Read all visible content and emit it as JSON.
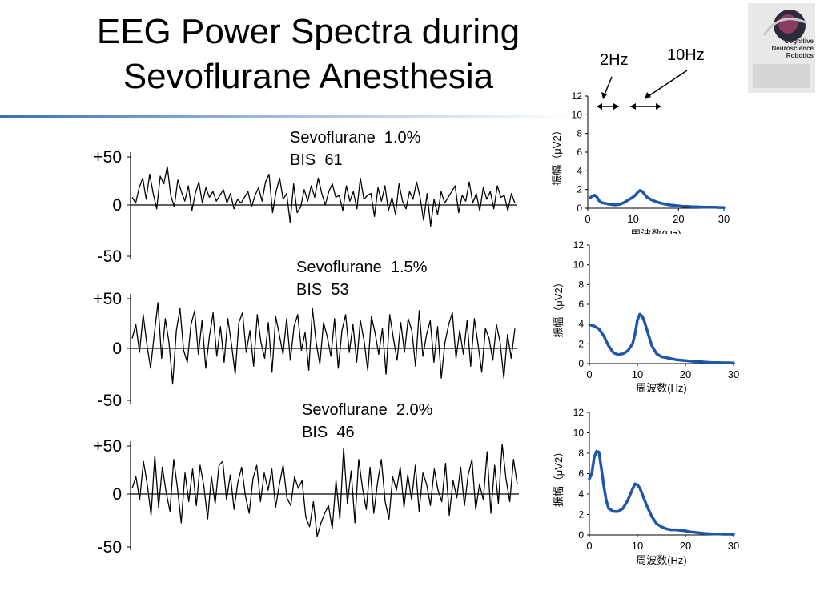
{
  "title": {
    "line1": "EEG Power Spectra during",
    "line2": "Sevoflurane Anesthesia"
  },
  "logo": {
    "text": [
      "Cognitive",
      "Neuroscience",
      "Robotics"
    ],
    "icon": "brain-logo-icon"
  },
  "annotations": {
    "band2": "2Hz",
    "band10": "10Hz"
  },
  "conditions": [
    {
      "drug": "Sevoflurane",
      "concentration": "1.0%",
      "bis_label": "BIS",
      "bis": "61"
    },
    {
      "drug": "Sevoflurane",
      "concentration": "1.5%",
      "bis_label": "BIS",
      "bis": "53"
    },
    {
      "drug": "Sevoflurane",
      "concentration": "2.0%",
      "bis_label": "BIS",
      "bis": "46"
    }
  ],
  "colors": {
    "spectrum_line": "#1f56a8",
    "eeg_trace": "#000000",
    "accent_rule": "#3d6fb5"
  },
  "chart_data": [
    {
      "type": "line",
      "subtype": "eeg-trace",
      "title": "Sevoflurane 1.0% BIS 61",
      "ylim": [
        -50,
        50
      ],
      "ytick_labels": [
        "+50",
        "0",
        "-50"
      ],
      "values": [
        8,
        2,
        18,
        28,
        6,
        32,
        12,
        -4,
        30,
        22,
        40,
        10,
        -2,
        26,
        14,
        4,
        20,
        -6,
        12,
        24,
        2,
        18,
        8,
        14,
        4,
        10,
        16,
        2,
        12,
        -4,
        6,
        2,
        8,
        14,
        -2,
        10,
        18,
        4,
        24,
        32,
        -8,
        14,
        28,
        6,
        12,
        -18,
        22,
        -8,
        -2,
        16,
        4,
        20,
        8,
        28,
        12,
        0,
        14,
        22,
        8,
        10,
        -6,
        20,
        4,
        14,
        -4,
        28,
        6,
        10,
        12,
        -12,
        18,
        4,
        20,
        -6,
        8,
        -10,
        22,
        4,
        -4,
        14,
        6,
        24,
        8,
        -16,
        12,
        -22,
        6,
        -10,
        14,
        2,
        8,
        14,
        20,
        -8,
        10,
        4,
        24,
        2,
        12,
        -6,
        18,
        6,
        14,
        -4,
        20,
        8,
        10,
        -6,
        12,
        2
      ]
    },
    {
      "type": "line",
      "subtype": "eeg-trace",
      "title": "Sevoflurane 1.5% BIS 53",
      "ylim": [
        -50,
        50
      ],
      "ytick_labels": [
        "+50",
        "0",
        "-50"
      ],
      "values": [
        10,
        24,
        -4,
        34,
        4,
        -20,
        14,
        46,
        -10,
        30,
        6,
        -36,
        18,
        40,
        -2,
        -14,
        24,
        38,
        -6,
        28,
        -20,
        12,
        36,
        -8,
        22,
        -14,
        30,
        4,
        -26,
        26,
        36,
        -4,
        18,
        -18,
        34,
        6,
        -10,
        26,
        -24,
        32,
        14,
        -6,
        30,
        -12,
        22,
        34,
        -2,
        16,
        -22,
        40,
        6,
        -16,
        26,
        12,
        -8,
        30,
        -20,
        18,
        34,
        -4,
        24,
        -14,
        28,
        8,
        -22,
        32,
        16,
        -6,
        20,
        -26,
        34,
        10,
        -12,
        26,
        -4,
        30,
        18,
        -18,
        38,
        -8,
        14,
        28,
        -14,
        22,
        -30,
        6,
        24,
        36,
        -10,
        18,
        -6,
        28,
        -18,
        30,
        4,
        -24,
        20,
        10,
        -12,
        24,
        6,
        -30,
        14,
        -10,
        20
      ]
    },
    {
      "type": "line",
      "subtype": "eeg-trace",
      "title": "Sevoflurane 2.0% BIS 46",
      "ylim": [
        -50,
        50
      ],
      "ytick_labels": [
        "+50",
        "0",
        "-50"
      ],
      "values": [
        6,
        18,
        -6,
        34,
        10,
        -22,
        40,
        -14,
        28,
        2,
        -18,
        36,
        6,
        -30,
        22,
        -8,
        26,
        -12,
        30,
        8,
        -26,
        18,
        -10,
        30,
        34,
        -6,
        20,
        -16,
        12,
        28,
        -2,
        -20,
        16,
        30,
        -8,
        22,
        4,
        26,
        -14,
        10,
        30,
        -4,
        -12,
        18,
        6,
        14,
        -24,
        -34,
        -8,
        -44,
        -30,
        -20,
        -12,
        -36,
        14,
        -26,
        48,
        -10,
        24,
        -30,
        36,
        6,
        -16,
        28,
        -20,
        12,
        36,
        -8,
        -26,
        18,
        4,
        28,
        -14,
        20,
        -6,
        30,
        -18,
        22,
        10,
        -12,
        26,
        4,
        -8,
        32,
        -22,
        14,
        -4,
        28,
        -12,
        20,
        36,
        -16,
        10,
        -6,
        44,
        -20,
        30,
        -10,
        52,
        16,
        -8,
        36,
        10
      ]
    },
    {
      "type": "line",
      "subtype": "power-spectrum",
      "title": "Sevoflurane 1.0%",
      "xlabel": "周波数(Hz)",
      "ylabel": "振幅（μV2）",
      "xlim": [
        0,
        30
      ],
      "ylim": [
        0,
        12
      ],
      "xticks": [
        0,
        10,
        20,
        30
      ],
      "yticks": [
        0,
        2,
        4,
        6,
        8,
        10,
        12
      ],
      "x": [
        0.5,
        1,
        1.5,
        2,
        2.5,
        3,
        4,
        5,
        6,
        7,
        8,
        9,
        10,
        10.5,
        11,
        11.5,
        12,
        12.5,
        13,
        14,
        15,
        16,
        17,
        18,
        19,
        20,
        21,
        22,
        23,
        24,
        25,
        26,
        27,
        28,
        29,
        30
      ],
      "values": [
        1.1,
        1.3,
        1.4,
        1.2,
        0.8,
        0.6,
        0.5,
        0.4,
        0.35,
        0.4,
        0.6,
        0.9,
        1.2,
        1.4,
        1.7,
        1.9,
        1.8,
        1.5,
        1.2,
        0.9,
        0.7,
        0.55,
        0.45,
        0.35,
        0.3,
        0.25,
        0.2,
        0.2,
        0.15,
        0.15,
        0.12,
        0.1,
        0.1,
        0.1,
        0.08,
        0.08
      ]
    },
    {
      "type": "line",
      "subtype": "power-spectrum",
      "title": "Sevoflurane 1.5%",
      "xlabel": "周波数(Hz)",
      "ylabel": "振幅（μV2）",
      "xlim": [
        0,
        30
      ],
      "ylim": [
        0,
        12
      ],
      "xticks": [
        0,
        10,
        20,
        30
      ],
      "yticks": [
        0,
        2,
        4,
        6,
        8,
        10,
        12
      ],
      "x": [
        0.3,
        1,
        2,
        3,
        4,
        5,
        6,
        7,
        8,
        9,
        9.5,
        10,
        10.5,
        11,
        11.5,
        12,
        13,
        14,
        15,
        16,
        17,
        18,
        19,
        20,
        21,
        22,
        23,
        24,
        25,
        26,
        27,
        28,
        29,
        30
      ],
      "values": [
        3.9,
        3.8,
        3.5,
        2.8,
        1.8,
        1.1,
        0.9,
        1.0,
        1.3,
        2.0,
        3.0,
        4.4,
        5.0,
        4.8,
        4.2,
        3.4,
        1.8,
        1.0,
        0.7,
        0.6,
        0.5,
        0.4,
        0.35,
        0.3,
        0.25,
        0.2,
        0.2,
        0.15,
        0.12,
        0.1,
        0.1,
        0.08,
        0.08,
        0.06
      ]
    },
    {
      "type": "line",
      "subtype": "power-spectrum",
      "title": "Sevoflurane 2.0%",
      "xlabel": "周波数(Hz)",
      "ylabel": "振幅（μV2）",
      "xlim": [
        0,
        30
      ],
      "ylim": [
        0,
        12
      ],
      "xticks": [
        0,
        10,
        20,
        30
      ],
      "yticks": [
        0,
        2,
        4,
        6,
        8,
        10,
        12
      ],
      "x": [
        0,
        0.5,
        1,
        1.5,
        2,
        2.5,
        3,
        3.5,
        4,
        5,
        6,
        7,
        8,
        9,
        9.5,
        10,
        10.5,
        11,
        12,
        13,
        14,
        15,
        16,
        17,
        18,
        19,
        20,
        21,
        22,
        23,
        24,
        25,
        26,
        27,
        28,
        29,
        30
      ],
      "values": [
        5.5,
        6.0,
        7.6,
        8.2,
        8.1,
        6.5,
        4.8,
        3.4,
        2.6,
        2.3,
        2.3,
        2.6,
        3.4,
        4.5,
        5.0,
        4.9,
        4.6,
        4.0,
        2.8,
        1.8,
        1.1,
        0.8,
        0.6,
        0.5,
        0.5,
        0.45,
        0.4,
        0.3,
        0.25,
        0.2,
        0.15,
        0.12,
        0.1,
        0.1,
        0.08,
        0.08,
        0.06
      ]
    }
  ]
}
